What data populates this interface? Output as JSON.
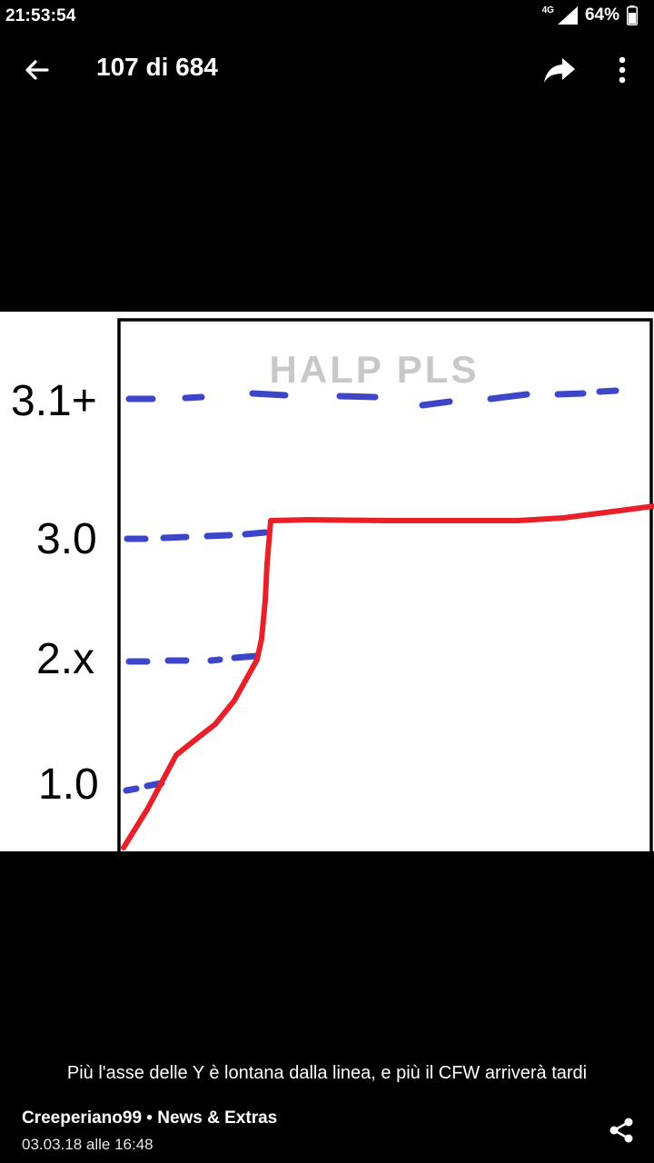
{
  "status_bar": {
    "time": "21:53:54",
    "network": "4G",
    "battery": "64%"
  },
  "header": {
    "title": "107 di 684",
    "icons": {
      "back": "arrow-left-icon",
      "share": "share-forward-icon",
      "more": "more-vertical-icon"
    }
  },
  "image": {
    "annotation": "HALP PLS",
    "y_labels": [
      "3.1+",
      "3.0",
      "2.x",
      "1.0"
    ],
    "colors": {
      "line": "#e8202a",
      "dashes": "#3d45c8",
      "frame": "#000000"
    }
  },
  "footer": {
    "caption": "Più l'asse delle Y è lontana dalla linea, e più il CFW arriverà tardi",
    "author_line": "Creeperiano99 • News & Extras",
    "date": "03.03.18 alle 16:48",
    "share_icon": "share-nodes-icon"
  }
}
